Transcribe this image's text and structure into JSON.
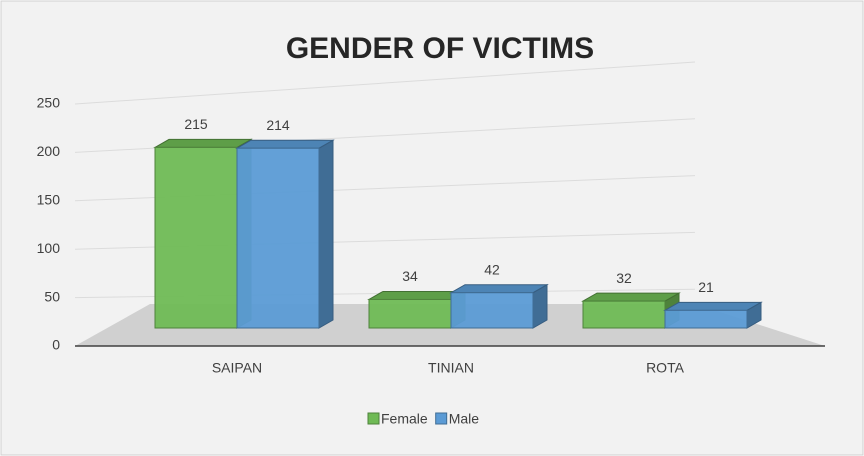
{
  "chart_data": {
    "type": "bar",
    "title": "GENDER OF VICTIMS",
    "categories": [
      "SAIPAN",
      "TINIAN",
      "ROTA"
    ],
    "series": [
      {
        "name": "Female",
        "color": "#6fba55",
        "values": [
          215,
          34,
          32
        ]
      },
      {
        "name": "Male",
        "color": "#5b9bd5",
        "values": [
          214,
          42,
          21
        ]
      }
    ],
    "ylim": [
      0,
      250
    ],
    "yticks": [
      0,
      50,
      100,
      150,
      200,
      250
    ],
    "grid": true,
    "legend": "bottom"
  }
}
